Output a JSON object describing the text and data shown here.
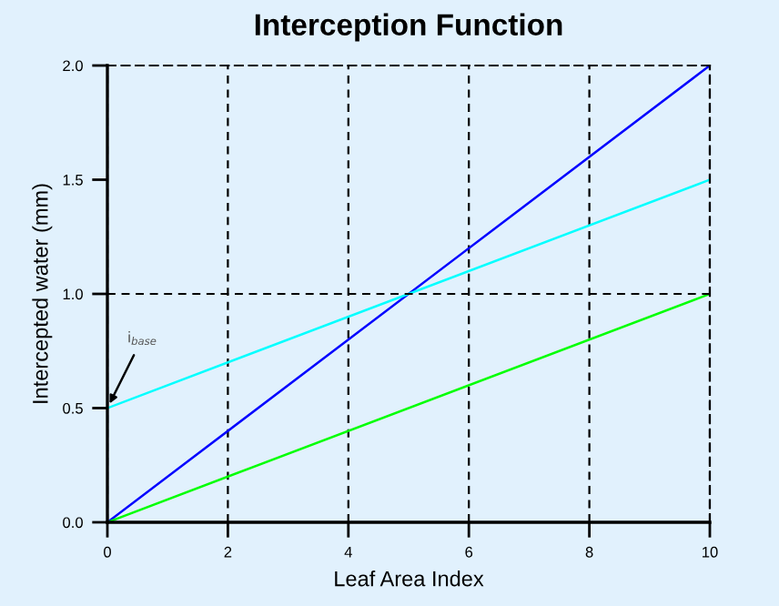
{
  "chart_data": {
    "type": "line",
    "title": "Interception Function",
    "xlabel": "Leaf Area Index",
    "ylabel": "Intercepted water (mm)",
    "x": [
      0,
      10
    ],
    "series": [
      {
        "color": "#0000ff",
        "values": [
          0,
          2.0
        ]
      },
      {
        "color": "#00ffff",
        "values": [
          0.5,
          1.5
        ]
      },
      {
        "color": "#00ff00",
        "values": [
          0,
          1.0
        ]
      }
    ],
    "xlim": [
      0,
      10
    ],
    "ylim": [
      0,
      2.0
    ],
    "xticks": [
      0,
      2,
      4,
      6,
      8,
      10
    ],
    "yticks": [
      {
        "value": 0,
        "label": "0.0"
      },
      {
        "value": 0.5,
        "label": "0.5"
      },
      {
        "value": 1.0,
        "label": "1.0"
      },
      {
        "value": 1.5,
        "label": "1.5"
      },
      {
        "value": 2.0,
        "label": "2.0"
      }
    ],
    "grid": "x",
    "ref_lines": [
      {
        "axis": "y",
        "value": 1.0,
        "line_style": "dashed",
        "color": "#000000"
      }
    ],
    "annotations": [
      {
        "text": "i$_{base}$",
        "x": 0,
        "y": 0.5
      }
    ],
    "legend": false
  }
}
